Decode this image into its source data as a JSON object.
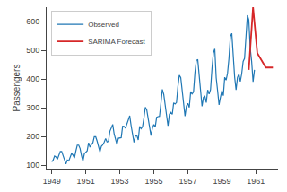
{
  "chart_data": {
    "type": "line",
    "ylabel": "Passengers",
    "xlim": [
      1948.7,
      1962.3
    ],
    "xticks": [
      1949,
      1951,
      1953,
      1955,
      1957,
      1959,
      1961
    ],
    "ylim": [
      88,
      650
    ],
    "yticks": [
      100,
      200,
      300,
      400,
      500,
      600
    ],
    "grid": false,
    "legend": "upper left",
    "series": [
      {
        "name": "Observed",
        "color": "#1f77b4",
        "x": [
          1949,
          1949.0833,
          1949.1667,
          1949.25,
          1949.3333,
          1949.4167,
          1949.5,
          1949.5833,
          1949.6667,
          1949.75,
          1949.8333,
          1949.9167,
          1950,
          1950.0833,
          1950.1667,
          1950.25,
          1950.3333,
          1950.4167,
          1950.5,
          1950.5833,
          1950.6667,
          1950.75,
          1950.8333,
          1950.9167,
          1951,
          1951.0833,
          1951.1667,
          1951.25,
          1951.3333,
          1951.4167,
          1951.5,
          1951.5833,
          1951.6667,
          1951.75,
          1951.8333,
          1951.9167,
          1952,
          1952.0833,
          1952.1667,
          1952.25,
          1952.3333,
          1952.4167,
          1952.5,
          1952.5833,
          1952.6667,
          1952.75,
          1952.8333,
          1952.9167,
          1953,
          1953.0833,
          1953.1667,
          1953.25,
          1953.3333,
          1953.4167,
          1953.5,
          1953.5833,
          1953.6667,
          1953.75,
          1953.8333,
          1953.9167,
          1954,
          1954.0833,
          1954.1667,
          1954.25,
          1954.3333,
          1954.4167,
          1954.5,
          1954.5833,
          1954.6667,
          1954.75,
          1954.8333,
          1954.9167,
          1955,
          1955.0833,
          1955.1667,
          1955.25,
          1955.3333,
          1955.4167,
          1955.5,
          1955.5833,
          1955.6667,
          1955.75,
          1955.8333,
          1955.9167,
          1956,
          1956.0833,
          1956.1667,
          1956.25,
          1956.3333,
          1956.4167,
          1956.5,
          1956.5833,
          1956.6667,
          1956.75,
          1956.8333,
          1956.9167,
          1957,
          1957.0833,
          1957.1667,
          1957.25,
          1957.3333,
          1957.4167,
          1957.5,
          1957.5833,
          1957.6667,
          1957.75,
          1957.8333,
          1957.9167,
          1958,
          1958.0833,
          1958.1667,
          1958.25,
          1958.3333,
          1958.4167,
          1958.5,
          1958.5833,
          1958.6667,
          1958.75,
          1958.8333,
          1958.9167,
          1959,
          1959.0833,
          1959.1667,
          1959.25,
          1959.3333,
          1959.4167,
          1959.5,
          1959.5833,
          1959.6667,
          1959.75,
          1959.8333,
          1959.9167,
          1960,
          1960.0833,
          1960.1667,
          1960.25,
          1960.3333,
          1960.4167,
          1960.5,
          1960.5833,
          1960.6667,
          1960.75,
          1960.8333,
          1960.9167
        ],
        "values": [
          112,
          118,
          132,
          129,
          121,
          135,
          148,
          148,
          136,
          119,
          104,
          118,
          115,
          126,
          141,
          135,
          125,
          149,
          170,
          170,
          158,
          133,
          114,
          140,
          145,
          150,
          178,
          163,
          172,
          178,
          199,
          199,
          184,
          162,
          146,
          166,
          171,
          180,
          193,
          181,
          183,
          218,
          230,
          242,
          209,
          191,
          172,
          194,
          196,
          196,
          236,
          235,
          229,
          243,
          264,
          272,
          237,
          211,
          180,
          201,
          204,
          188,
          235,
          227,
          234,
          264,
          302,
          293,
          259,
          229,
          203,
          229,
          242,
          233,
          267,
          269,
          270,
          315,
          364,
          347,
          312,
          274,
          237,
          278,
          284,
          277,
          317,
          313,
          318,
          374,
          413,
          405,
          355,
          306,
          271,
          306,
          315,
          301,
          356,
          348,
          355,
          422,
          465,
          467,
          404,
          347,
          305,
          336,
          340,
          318,
          362,
          348,
          363,
          435,
          491,
          505,
          404,
          359,
          310,
          337,
          360,
          342,
          406,
          396,
          420,
          472,
          548,
          559,
          463,
          407,
          362,
          405,
          417,
          391,
          419,
          461,
          472,
          535,
          622,
          606,
          508,
          461,
          390,
          432
        ]
      },
      {
        "name": "SARIMA Forecast",
        "color": "#d62728",
        "x": [
          1960.583,
          1960.833,
          1961.083,
          1961.583,
          1962.0
        ],
        "values": [
          432,
          650,
          490,
          440,
          440
        ]
      }
    ]
  }
}
